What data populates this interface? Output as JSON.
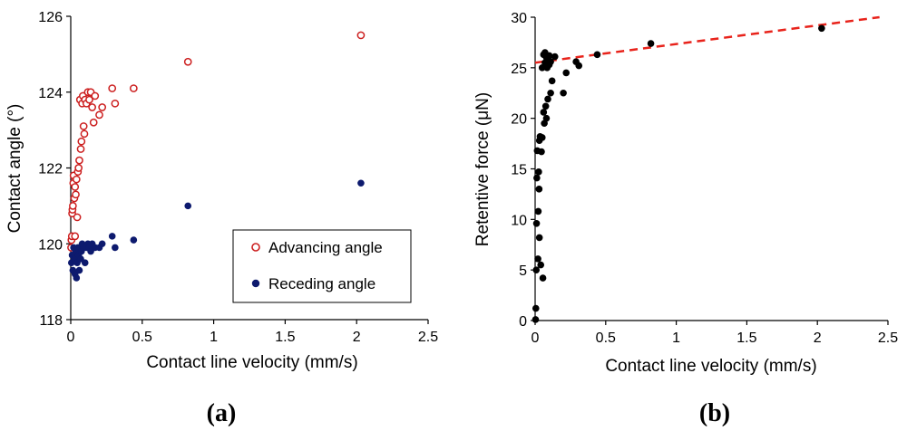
{
  "chart_data": [
    {
      "type": "scatter",
      "panel_label": "a",
      "xlabel": "Contact line velocity (mm/s)",
      "ylabel": "Contact angle (°)",
      "xlim": [
        0,
        2.5
      ],
      "ylim": [
        118,
        126
      ],
      "xticks": [
        0,
        0.5,
        1,
        1.5,
        2,
        2.5
      ],
      "xtick_labels": [
        "0",
        "0.5",
        "1",
        "1.5",
        "2",
        "2.5"
      ],
      "yticks": [
        118,
        120,
        122,
        124,
        126
      ],
      "ytick_labels": [
        "118",
        "120",
        "122",
        "124",
        "126"
      ],
      "legend_position": "lower-right",
      "colors": {
        "advancing": "#cc1f1f",
        "receding": "#0d1a6e"
      },
      "series": [
        {
          "name": "Advancing angle",
          "marker": "open-circle",
          "points": [
            [
              0.003,
              119.9
            ],
            [
              0.005,
              120.1
            ],
            [
              0.008,
              120.2
            ],
            [
              0.01,
              120.8
            ],
            [
              0.012,
              120.9
            ],
            [
              0.015,
              121.0
            ],
            [
              0.018,
              121.6
            ],
            [
              0.02,
              121.8
            ],
            [
              0.025,
              121.2
            ],
            [
              0.03,
              120.2
            ],
            [
              0.03,
              121.5
            ],
            [
              0.035,
              121.3
            ],
            [
              0.04,
              121.7
            ],
            [
              0.045,
              120.7
            ],
            [
              0.05,
              121.9
            ],
            [
              0.055,
              122.0
            ],
            [
              0.06,
              122.2
            ],
            [
              0.065,
              123.8
            ],
            [
              0.07,
              122.5
            ],
            [
              0.075,
              122.7
            ],
            [
              0.08,
              123.7
            ],
            [
              0.085,
              123.9
            ],
            [
              0.09,
              123.1
            ],
            [
              0.095,
              122.9
            ],
            [
              0.1,
              123.8
            ],
            [
              0.11,
              123.7
            ],
            [
              0.12,
              124.0
            ],
            [
              0.13,
              123.8
            ],
            [
              0.14,
              124.0
            ],
            [
              0.15,
              123.6
            ],
            [
              0.16,
              123.2
            ],
            [
              0.17,
              123.9
            ],
            [
              0.2,
              123.4
            ],
            [
              0.22,
              123.6
            ],
            [
              0.29,
              124.1
            ],
            [
              0.31,
              123.7
            ],
            [
              0.44,
              124.1
            ],
            [
              0.82,
              124.8
            ],
            [
              2.03,
              125.5
            ]
          ]
        },
        {
          "name": "Receding angle",
          "marker": "filled-circle",
          "points": [
            [
              0.005,
              119.5
            ],
            [
              0.01,
              119.7
            ],
            [
              0.015,
              119.3
            ],
            [
              0.02,
              119.9
            ],
            [
              0.025,
              119.6
            ],
            [
              0.03,
              119.2
            ],
            [
              0.035,
              119.8
            ],
            [
              0.04,
              119.1
            ],
            [
              0.045,
              119.5
            ],
            [
              0.05,
              119.9
            ],
            [
              0.055,
              119.7
            ],
            [
              0.06,
              119.3
            ],
            [
              0.065,
              119.9
            ],
            [
              0.07,
              119.6
            ],
            [
              0.075,
              119.8
            ],
            [
              0.08,
              120.0
            ],
            [
              0.09,
              119.9
            ],
            [
              0.1,
              119.5
            ],
            [
              0.11,
              119.9
            ],
            [
              0.12,
              120.0
            ],
            [
              0.13,
              119.9
            ],
            [
              0.14,
              119.8
            ],
            [
              0.15,
              120.0
            ],
            [
              0.17,
              119.9
            ],
            [
              0.2,
              119.9
            ],
            [
              0.22,
              120.0
            ],
            [
              0.29,
              120.2
            ],
            [
              0.31,
              119.9
            ],
            [
              0.44,
              120.1
            ],
            [
              0.82,
              121.0
            ],
            [
              2.03,
              121.6
            ]
          ]
        }
      ]
    },
    {
      "type": "scatter",
      "panel_label": "b",
      "xlabel": "Contact line velocity (mm/s)",
      "ylabel": "Retentive force (μN)",
      "xlim": [
        0,
        2.5
      ],
      "ylim": [
        0,
        30
      ],
      "xticks": [
        0,
        0.5,
        1,
        1.5,
        2,
        2.5
      ],
      "xtick_labels": [
        "0",
        "0.5",
        "1",
        "1.5",
        "2",
        "2.5"
      ],
      "yticks": [
        0,
        5,
        10,
        15,
        20,
        25,
        30
      ],
      "ytick_labels": [
        "0",
        "5",
        "10",
        "15",
        "20",
        "25",
        "30"
      ],
      "colors": {
        "points": "#000000",
        "trendline": "#e8231b"
      },
      "trendline": {
        "style": "dashed",
        "x": [
          0,
          2.44
        ],
        "y": [
          25.5,
          30.0
        ]
      },
      "series": [
        {
          "name": "Retentive force",
          "marker": "filled-circle",
          "points": [
            [
              0.003,
              0.1
            ],
            [
              0.005,
              1.2
            ],
            [
              0.008,
              5.0
            ],
            [
              0.01,
              9.6
            ],
            [
              0.012,
              14.1
            ],
            [
              0.015,
              16.8
            ],
            [
              0.02,
              6.1
            ],
            [
              0.022,
              10.8
            ],
            [
              0.025,
              14.7
            ],
            [
              0.028,
              13.0
            ],
            [
              0.03,
              8.2
            ],
            [
              0.03,
              17.8
            ],
            [
              0.035,
              18.2
            ],
            [
              0.04,
              5.5
            ],
            [
              0.045,
              16.7
            ],
            [
              0.05,
              25.0
            ],
            [
              0.05,
              18.1
            ],
            [
              0.055,
              4.2
            ],
            [
              0.06,
              20.6
            ],
            [
              0.06,
              26.3
            ],
            [
              0.065,
              19.5
            ],
            [
              0.07,
              25.5
            ],
            [
              0.07,
              26.5
            ],
            [
              0.075,
              21.2
            ],
            [
              0.08,
              26.0
            ],
            [
              0.08,
              20.0
            ],
            [
              0.085,
              25.0
            ],
            [
              0.09,
              21.9
            ],
            [
              0.1,
              26.2
            ],
            [
              0.1,
              25.3
            ],
            [
              0.11,
              25.6
            ],
            [
              0.11,
              22.5
            ],
            [
              0.12,
              23.7
            ],
            [
              0.14,
              26.1
            ],
            [
              0.2,
              22.5
            ],
            [
              0.22,
              24.5
            ],
            [
              0.29,
              25.6
            ],
            [
              0.31,
              25.2
            ],
            [
              0.44,
              26.3
            ],
            [
              0.82,
              27.4
            ],
            [
              2.03,
              28.9
            ]
          ]
        }
      ]
    }
  ],
  "panel_labels": [
    "(a)",
    "(b)"
  ],
  "legend": {
    "advancing_label": "Advancing angle",
    "receding_label": "Receding angle"
  }
}
